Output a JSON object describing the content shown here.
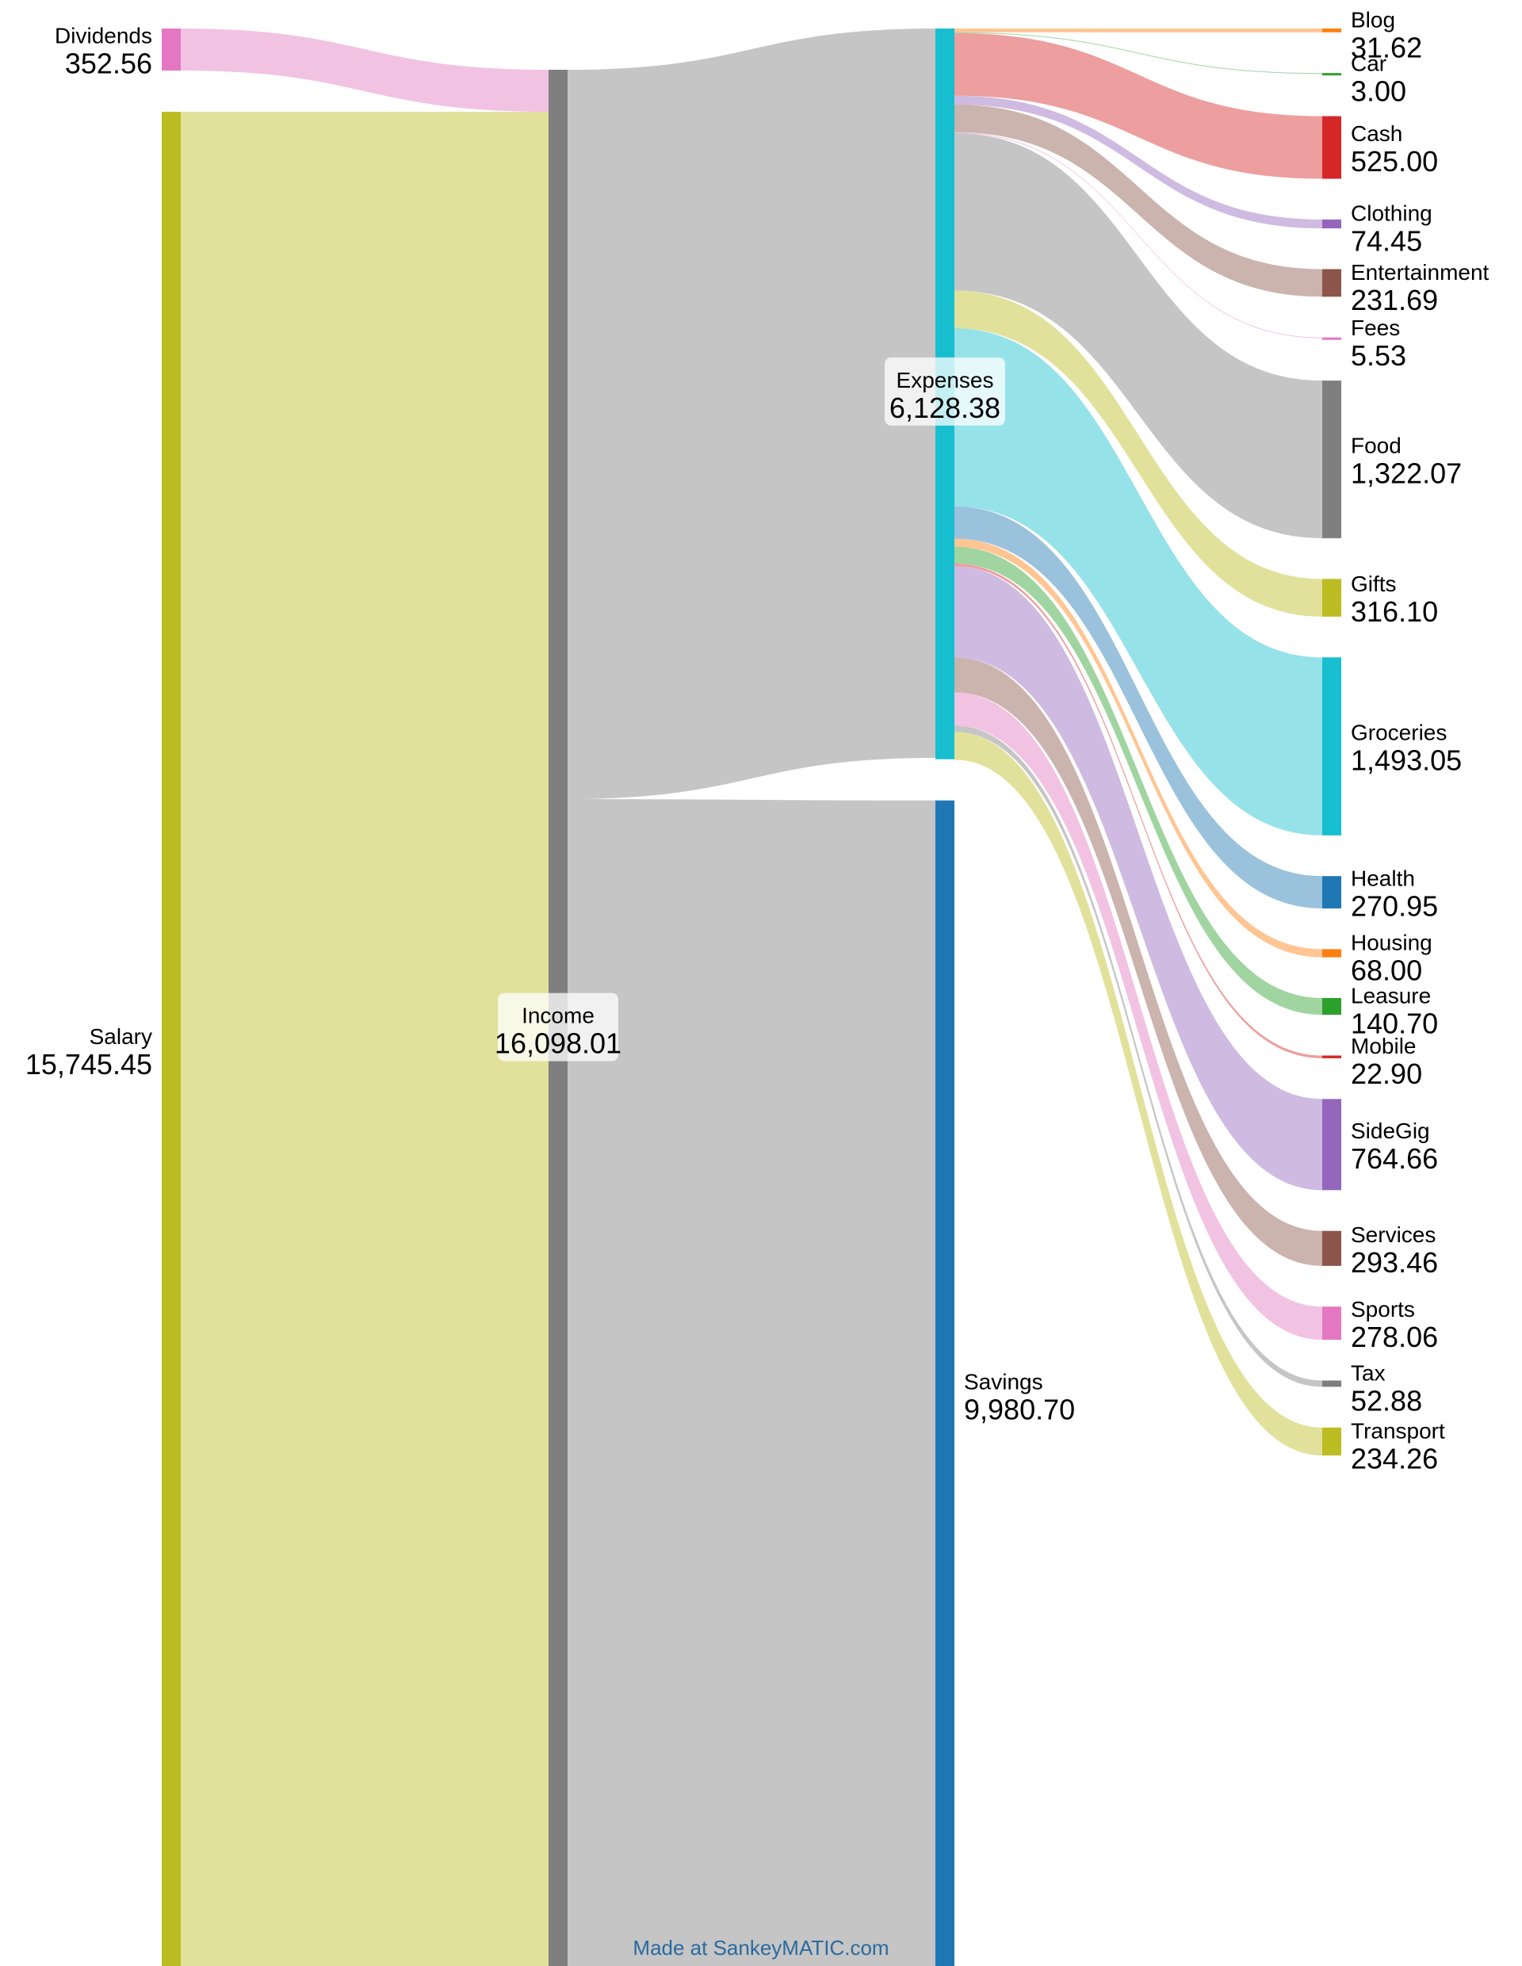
{
  "credit": "Made at SankeyMATIC.com",
  "credit_color": "#2a6aa0",
  "nodes": [
    {
      "id": "dividends",
      "name": "Dividends",
      "value": "352.56",
      "amount": 352.56,
      "color": "#e377c2",
      "column": 0,
      "label_side": "left"
    },
    {
      "id": "salary",
      "name": "Salary",
      "value": "15,745.45",
      "amount": 15745.45,
      "color": "#bcbd22",
      "column": 0,
      "label_side": "left"
    },
    {
      "id": "income",
      "name": "Income",
      "value": "16,098.01",
      "amount": 16098.01,
      "color": "#7f7f7f",
      "column": 1,
      "label_side": "center"
    },
    {
      "id": "expenses",
      "name": "Expenses",
      "value": "6,128.38",
      "amount": 6128.38,
      "color": "#17becf",
      "column": 2,
      "label_side": "center"
    },
    {
      "id": "savings",
      "name": "Savings",
      "value": "9,980.70",
      "amount": 9980.7,
      "color": "#1f77b4",
      "column": 2,
      "label_side": "right"
    },
    {
      "id": "blog",
      "name": "Blog",
      "value": "31.62",
      "amount": 31.62,
      "color": "#ff7f0e",
      "column": 3,
      "label_side": "right"
    },
    {
      "id": "car",
      "name": "Car",
      "value": "3.00",
      "amount": 3.0,
      "color": "#2ca02c",
      "column": 3,
      "label_side": "right"
    },
    {
      "id": "cash",
      "name": "Cash",
      "value": "525.00",
      "amount": 525.0,
      "color": "#d62728",
      "column": 3,
      "label_side": "right"
    },
    {
      "id": "clothing",
      "name": "Clothing",
      "value": "74.45",
      "amount": 74.45,
      "color": "#9467bd",
      "column": 3,
      "label_side": "right"
    },
    {
      "id": "entertainment",
      "name": "Entertainment",
      "value": "231.69",
      "amount": 231.69,
      "color": "#8c564b",
      "column": 3,
      "label_side": "right"
    },
    {
      "id": "fees",
      "name": "Fees",
      "value": "5.53",
      "amount": 5.53,
      "color": "#e377c2",
      "column": 3,
      "label_side": "right"
    },
    {
      "id": "food",
      "name": "Food",
      "value": "1,322.07",
      "amount": 1322.07,
      "color": "#7f7f7f",
      "column": 3,
      "label_side": "right"
    },
    {
      "id": "gifts",
      "name": "Gifts",
      "value": "316.10",
      "amount": 316.1,
      "color": "#bcbd22",
      "column": 3,
      "label_side": "right"
    },
    {
      "id": "groceries",
      "name": "Groceries",
      "value": "1,493.05",
      "amount": 1493.05,
      "color": "#17becf",
      "column": 3,
      "label_side": "right"
    },
    {
      "id": "health",
      "name": "Health",
      "value": "270.95",
      "amount": 270.95,
      "color": "#1f77b4",
      "column": 3,
      "label_side": "right"
    },
    {
      "id": "housing",
      "name": "Housing",
      "value": "68.00",
      "amount": 68.0,
      "color": "#ff7f0e",
      "column": 3,
      "label_side": "right"
    },
    {
      "id": "leasure",
      "name": "Leasure",
      "value": "140.70",
      "amount": 140.7,
      "color": "#2ca02c",
      "column": 3,
      "label_side": "right"
    },
    {
      "id": "mobile",
      "name": "Mobile",
      "value": "22.90",
      "amount": 22.9,
      "color": "#d62728",
      "column": 3,
      "label_side": "right"
    },
    {
      "id": "sidegig",
      "name": "SideGig",
      "value": "764.66",
      "amount": 764.66,
      "color": "#9467bd",
      "column": 3,
      "label_side": "right"
    },
    {
      "id": "services",
      "name": "Services",
      "value": "293.46",
      "amount": 293.46,
      "color": "#8c564b",
      "column": 3,
      "label_side": "right"
    },
    {
      "id": "sports",
      "name": "Sports",
      "value": "278.06",
      "amount": 278.06,
      "color": "#e377c2",
      "column": 3,
      "label_side": "right"
    },
    {
      "id": "tax",
      "name": "Tax",
      "value": "52.88",
      "amount": 52.88,
      "color": "#7f7f7f",
      "column": 3,
      "label_side": "right"
    },
    {
      "id": "transport",
      "name": "Transport",
      "value": "234.26",
      "amount": 234.26,
      "color": "#bcbd22",
      "column": 3,
      "label_side": "right"
    }
  ],
  "flows": [
    {
      "source": "dividends",
      "target": "income",
      "value": 352.56
    },
    {
      "source": "salary",
      "target": "income",
      "value": 15745.45
    },
    {
      "source": "income",
      "target": "expenses",
      "value": 6117.31
    },
    {
      "source": "income",
      "target": "savings",
      "value": 9980.7
    },
    {
      "source": "expenses",
      "target": "blog",
      "value": 31.62
    },
    {
      "source": "expenses",
      "target": "car",
      "value": 3.0
    },
    {
      "source": "expenses",
      "target": "cash",
      "value": 525.0
    },
    {
      "source": "expenses",
      "target": "clothing",
      "value": 74.45
    },
    {
      "source": "expenses",
      "target": "entertainment",
      "value": 231.69
    },
    {
      "source": "expenses",
      "target": "fees",
      "value": 5.53
    },
    {
      "source": "expenses",
      "target": "food",
      "value": 1322.07
    },
    {
      "source": "expenses",
      "target": "gifts",
      "value": 316.1
    },
    {
      "source": "expenses",
      "target": "groceries",
      "value": 1493.05
    },
    {
      "source": "expenses",
      "target": "health",
      "value": 270.95
    },
    {
      "source": "expenses",
      "target": "housing",
      "value": 68.0
    },
    {
      "source": "expenses",
      "target": "leasure",
      "value": 140.7
    },
    {
      "source": "expenses",
      "target": "mobile",
      "value": 22.9
    },
    {
      "source": "expenses",
      "target": "sidegig",
      "value": 764.66
    },
    {
      "source": "expenses",
      "target": "services",
      "value": 293.46
    },
    {
      "source": "expenses",
      "target": "sports",
      "value": 278.06
    },
    {
      "source": "expenses",
      "target": "tax",
      "value": 52.88
    },
    {
      "source": "expenses",
      "target": "transport",
      "value": 234.26
    }
  ]
}
